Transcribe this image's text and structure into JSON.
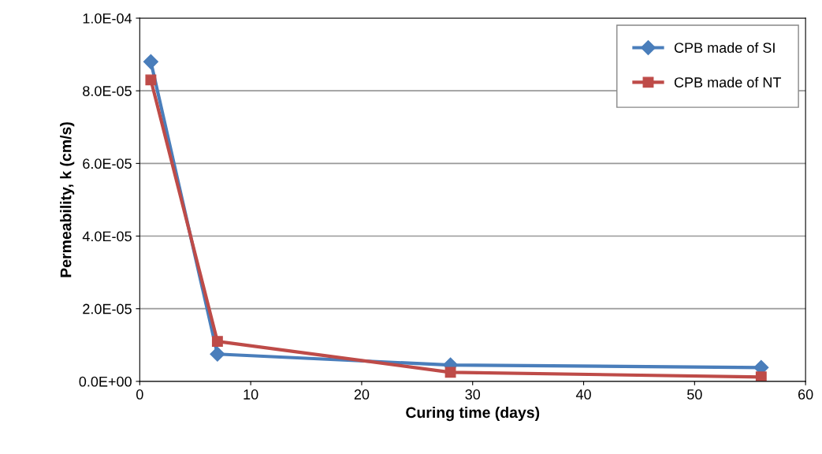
{
  "chart_data": {
    "type": "line",
    "xlabel": "Curing time (days)",
    "ylabel": "Permeability, k (cm/s)",
    "x": [
      1,
      7,
      28,
      56
    ],
    "series": [
      {
        "name": "CPB made of SI",
        "color": "#4a7ebb",
        "marker": "diamond",
        "values": [
          8.8e-05,
          7.5e-06,
          4.5e-06,
          3.8e-06
        ]
      },
      {
        "name": "CPB made of NT",
        "color": "#be4b48",
        "marker": "square",
        "values": [
          8.3e-05,
          1.1e-05,
          2.5e-06,
          1.2e-06
        ]
      }
    ],
    "xlim": [
      0,
      60
    ],
    "xticks": [
      0,
      10,
      20,
      30,
      40,
      50,
      60
    ],
    "ylim": [
      0,
      0.0001
    ],
    "yticks": [
      {
        "value": 0,
        "label": "0.0E+00"
      },
      {
        "value": 2e-05,
        "label": "2.0E-05"
      },
      {
        "value": 4e-05,
        "label": "4.0E-05"
      },
      {
        "value": 6e-05,
        "label": "6.0E-05"
      },
      {
        "value": 8e-05,
        "label": "8.0E-05"
      },
      {
        "value": 0.0001,
        "label": "1.0E-04"
      }
    ],
    "grid": "y",
    "legend": "top right",
    "line_style": "solid"
  }
}
